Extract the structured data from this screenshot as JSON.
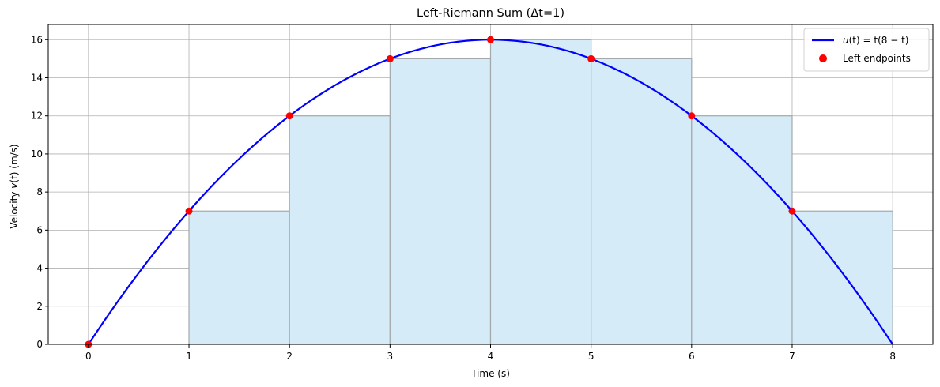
{
  "chart_data": {
    "type": "line",
    "title": "Left-Riemann Sum (Δt=1)",
    "xlabel": "Time (s)",
    "ylabel_prefix": "Velocity ",
    "ylabel_var": "v",
    "ylabel_arg": "(t)",
    "ylabel_suffix": " (m/s)",
    "xlim": [
      -0.4,
      8.4
    ],
    "ylim": [
      0,
      16.8
    ],
    "grid": true,
    "legend_position": "top-right",
    "xticks": [
      0,
      1,
      2,
      3,
      4,
      5,
      6,
      7,
      8
    ],
    "yticks": [
      0,
      2,
      4,
      6,
      8,
      10,
      12,
      14,
      16
    ],
    "curve": {
      "name_parts": {
        "fn": "u",
        "arg": "(t) = t(8 − t)"
      },
      "color": "#0000ff",
      "x_start": 0,
      "x_end": 8
    },
    "bars": {
      "x_left": [
        0,
        1,
        2,
        3,
        4,
        5,
        6,
        7
      ],
      "width": 1,
      "heights": [
        0,
        7,
        12,
        15,
        16,
        15,
        12,
        7
      ],
      "fill": "#d5ebf7",
      "edge": "#a3a8ab"
    },
    "points": {
      "name": "Left endpoints",
      "color": "#ff0000",
      "x": [
        0,
        1,
        2,
        3,
        4,
        5,
        6,
        7
      ],
      "y": [
        0,
        7,
        12,
        15,
        16,
        15,
        12,
        7
      ]
    }
  }
}
